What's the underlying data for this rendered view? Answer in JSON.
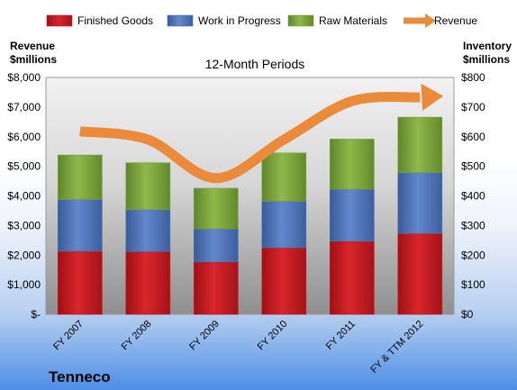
{
  "chart_data": {
    "type": "bar",
    "stacked": true,
    "title": "12-Month Periods",
    "company": "Tenneco",
    "categories": [
      "FY 2007",
      "FY 2008",
      "FY 2009",
      "FY 2010",
      "FY 2011",
      "FY & TTM 2012"
    ],
    "series": [
      {
        "name": "Finished Goods",
        "axis": "right",
        "color": "#c8191f",
        "values": [
          213,
          212,
          177,
          225,
          247,
          273
        ]
      },
      {
        "name": "Work in Progress",
        "axis": "right",
        "color": "#4a6fb5",
        "values": [
          175,
          142,
          112,
          157,
          176,
          206
        ]
      },
      {
        "name": "Raw Materials",
        "axis": "right",
        "color": "#7aa33a",
        "values": [
          150,
          158,
          137,
          163,
          169,
          187
        ]
      },
      {
        "name": "Revenue",
        "axis": "left",
        "type": "line",
        "color": "#ec8a3c",
        "values": [
          6180,
          5900,
          4600,
          5900,
          7200,
          7330
        ]
      }
    ],
    "left_axis": {
      "label_line1": "Revenue",
      "label_line2": "$millions",
      "ylim": [
        0,
        8000
      ],
      "ticks": [
        "$-",
        "$1,000",
        "$2,000",
        "$3,000",
        "$4,000",
        "$5,000",
        "$6,000",
        "$7,000",
        "$8,000"
      ]
    },
    "right_axis": {
      "label_line1": "Inventory",
      "label_line2": "$millions",
      "ylim": [
        0,
        800
      ],
      "ticks": [
        "$0",
        "$100",
        "$200",
        "$300",
        "$400",
        "$500",
        "$600",
        "$700",
        "$800"
      ]
    },
    "legend_position": "top",
    "grid": false
  }
}
